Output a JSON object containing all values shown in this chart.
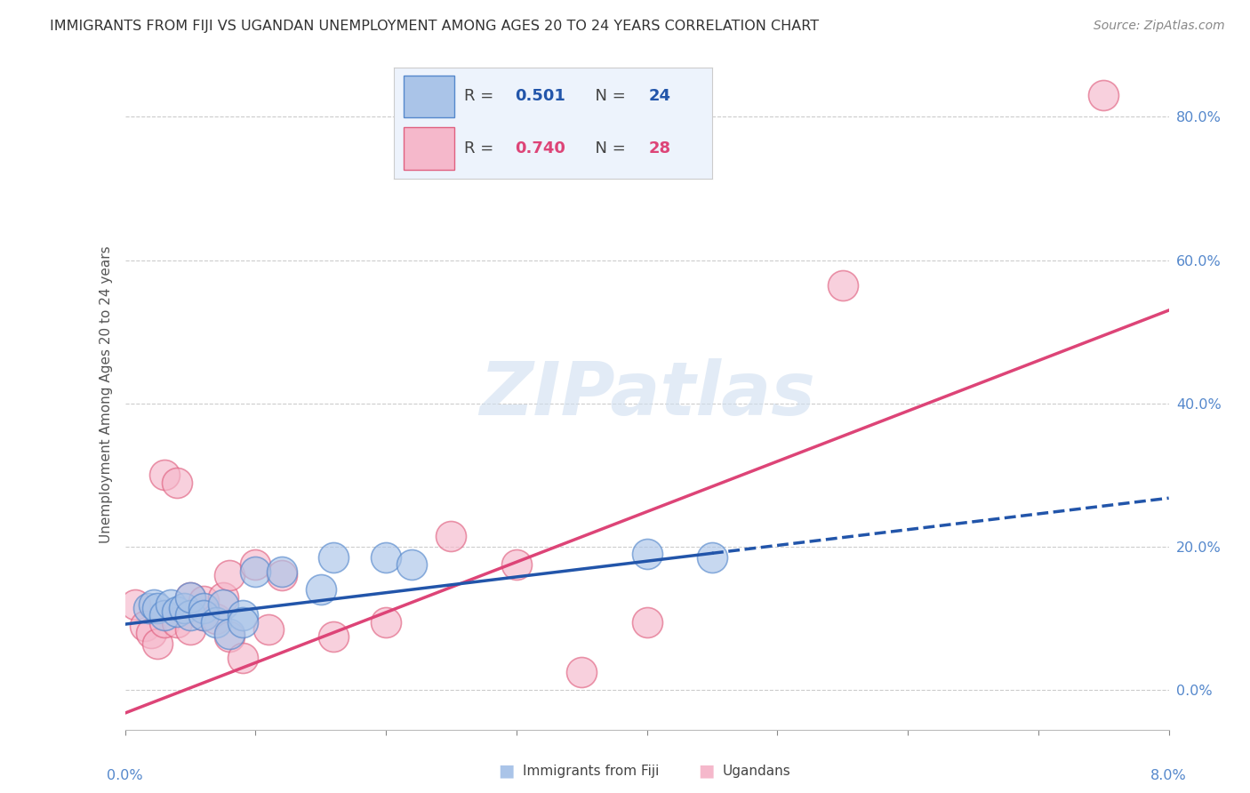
{
  "title": "IMMIGRANTS FROM FIJI VS UGANDAN UNEMPLOYMENT AMONG AGES 20 TO 24 YEARS CORRELATION CHART",
  "source": "Source: ZipAtlas.com",
  "ylabel": "Unemployment Among Ages 20 to 24 years",
  "xlim": [
    0.0,
    0.08
  ],
  "ylim": [
    -0.055,
    0.88
  ],
  "xtick_vals": [
    0.0,
    0.01,
    0.02,
    0.03,
    0.04,
    0.05,
    0.06,
    0.07,
    0.08
  ],
  "yticks_right": [
    0.0,
    0.2,
    0.4,
    0.6,
    0.8
  ],
  "ytick_right_labels": [
    "0.0%",
    "20.0%",
    "40.0%",
    "60.0%",
    "80.0%"
  ],
  "fiji_color": "#aac4e8",
  "fiji_edge_color": "#5588cc",
  "uganda_color": "#f5b8cb",
  "uganda_edge_color": "#e06080",
  "fiji_line_color": "#2255aa",
  "uganda_line_color": "#dd4477",
  "fiji_R": 0.501,
  "fiji_N": 24,
  "uganda_R": 0.74,
  "uganda_N": 28,
  "fiji_scatter_x": [
    0.0018,
    0.0022,
    0.0025,
    0.003,
    0.0035,
    0.004,
    0.0045,
    0.005,
    0.005,
    0.006,
    0.006,
    0.007,
    0.0075,
    0.008,
    0.009,
    0.009,
    0.01,
    0.012,
    0.015,
    0.016,
    0.02,
    0.022,
    0.04,
    0.045
  ],
  "fiji_scatter_y": [
    0.115,
    0.12,
    0.115,
    0.105,
    0.12,
    0.11,
    0.115,
    0.105,
    0.13,
    0.115,
    0.105,
    0.095,
    0.12,
    0.078,
    0.105,
    0.095,
    0.165,
    0.165,
    0.14,
    0.185,
    0.185,
    0.175,
    0.19,
    0.185
  ],
  "uganda_scatter_x": [
    0.0008,
    0.0015,
    0.002,
    0.0025,
    0.003,
    0.003,
    0.004,
    0.004,
    0.005,
    0.005,
    0.006,
    0.006,
    0.007,
    0.0075,
    0.008,
    0.008,
    0.009,
    0.01,
    0.011,
    0.012,
    0.016,
    0.02,
    0.025,
    0.03,
    0.035,
    0.04,
    0.055,
    0.075
  ],
  "uganda_scatter_y": [
    0.12,
    0.09,
    0.08,
    0.065,
    0.095,
    0.3,
    0.29,
    0.095,
    0.085,
    0.13,
    0.105,
    0.125,
    0.1,
    0.13,
    0.075,
    0.16,
    0.045,
    0.175,
    0.085,
    0.16,
    0.075,
    0.095,
    0.215,
    0.175,
    0.025,
    0.095,
    0.565,
    0.83
  ],
  "fiji_trend": [
    0.092,
    0.268
  ],
  "fiji_trend_solid_end": 0.045,
  "uganda_trend": [
    -0.032,
    0.53
  ],
  "watermark_text": "ZIPatlas",
  "watermark_fontsize": 60,
  "background_color": "#ffffff",
  "title_fontsize": 11.5,
  "source_fontsize": 10,
  "axis_label_fontsize": 11,
  "tick_label_fontsize": 11.5,
  "legend_fontsize": 13
}
